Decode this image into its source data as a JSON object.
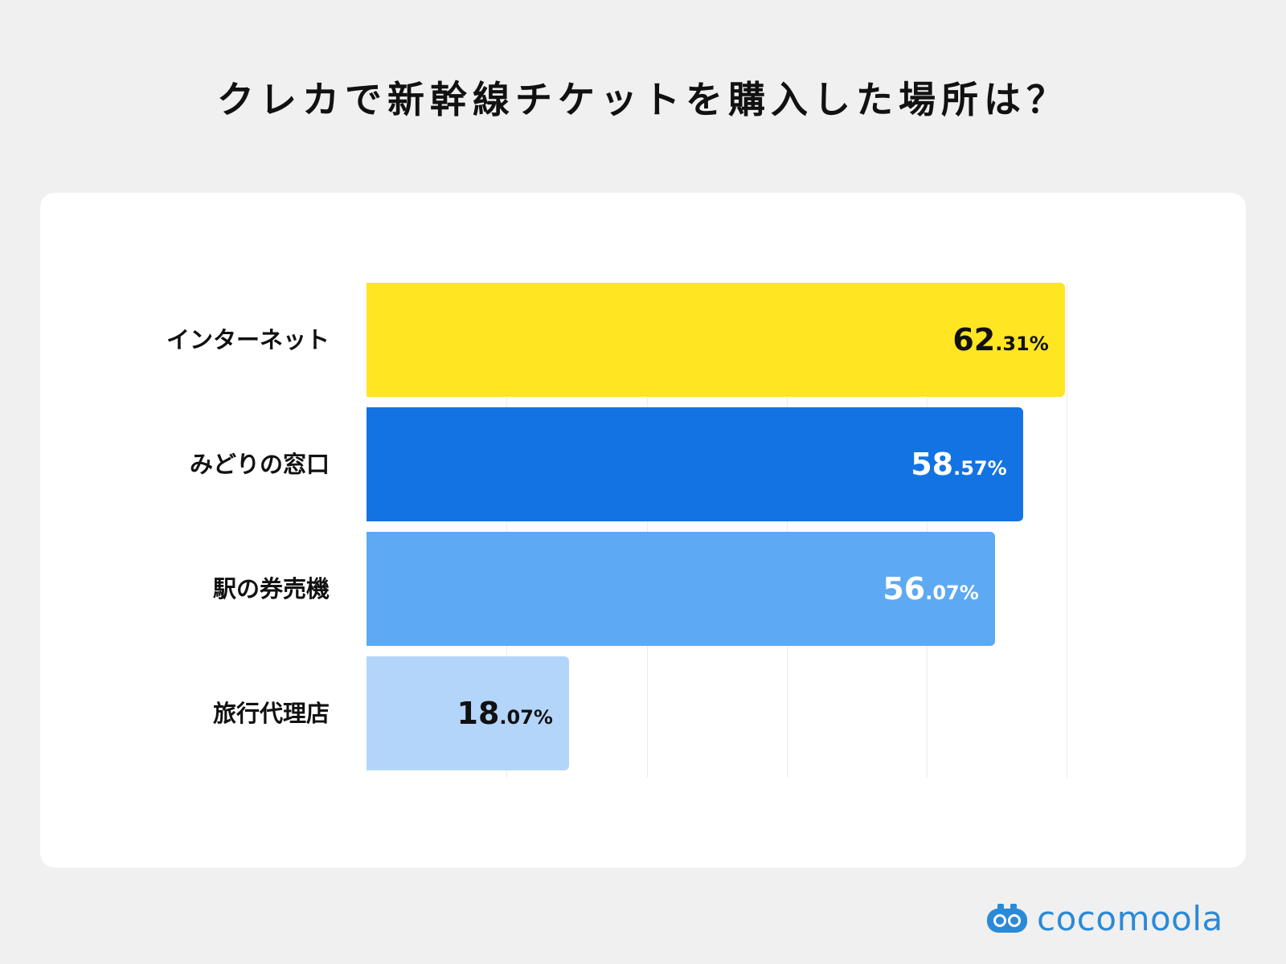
{
  "title": "クレカで新幹線チケットを購入した場所は？",
  "brand": {
    "name": "cocomoola",
    "color": "#2a8ad8",
    "icon": "cocomoola-logo-icon"
  },
  "chart_data": {
    "type": "bar",
    "orientation": "horizontal",
    "title": "クレカで新幹線チケットを購入した場所は？",
    "categories": [
      "インターネット",
      "みどりの窓口",
      "駅の券売機",
      "旅行代理店"
    ],
    "values": [
      62.31,
      58.57,
      56.07,
      18.07
    ],
    "unit": "%",
    "value_labels": [
      {
        "int": "62",
        "dec": ".31%"
      },
      {
        "int": "58",
        "dec": ".57%"
      },
      {
        "int": "56",
        "dec": ".07%"
      },
      {
        "int": "18",
        "dec": ".07%"
      }
    ],
    "bar_colors": [
      "#ffe522",
      "#1373e3",
      "#5da9f2",
      "#b4d5fa"
    ],
    "label_colors": [
      "#111111",
      "#ffffff",
      "#ffffff",
      "#111111"
    ],
    "xlim": [
      0,
      70
    ],
    "gridlines": [
      12.5,
      25,
      37.5,
      50,
      62.5
    ],
    "grid": true,
    "legend": false
  }
}
